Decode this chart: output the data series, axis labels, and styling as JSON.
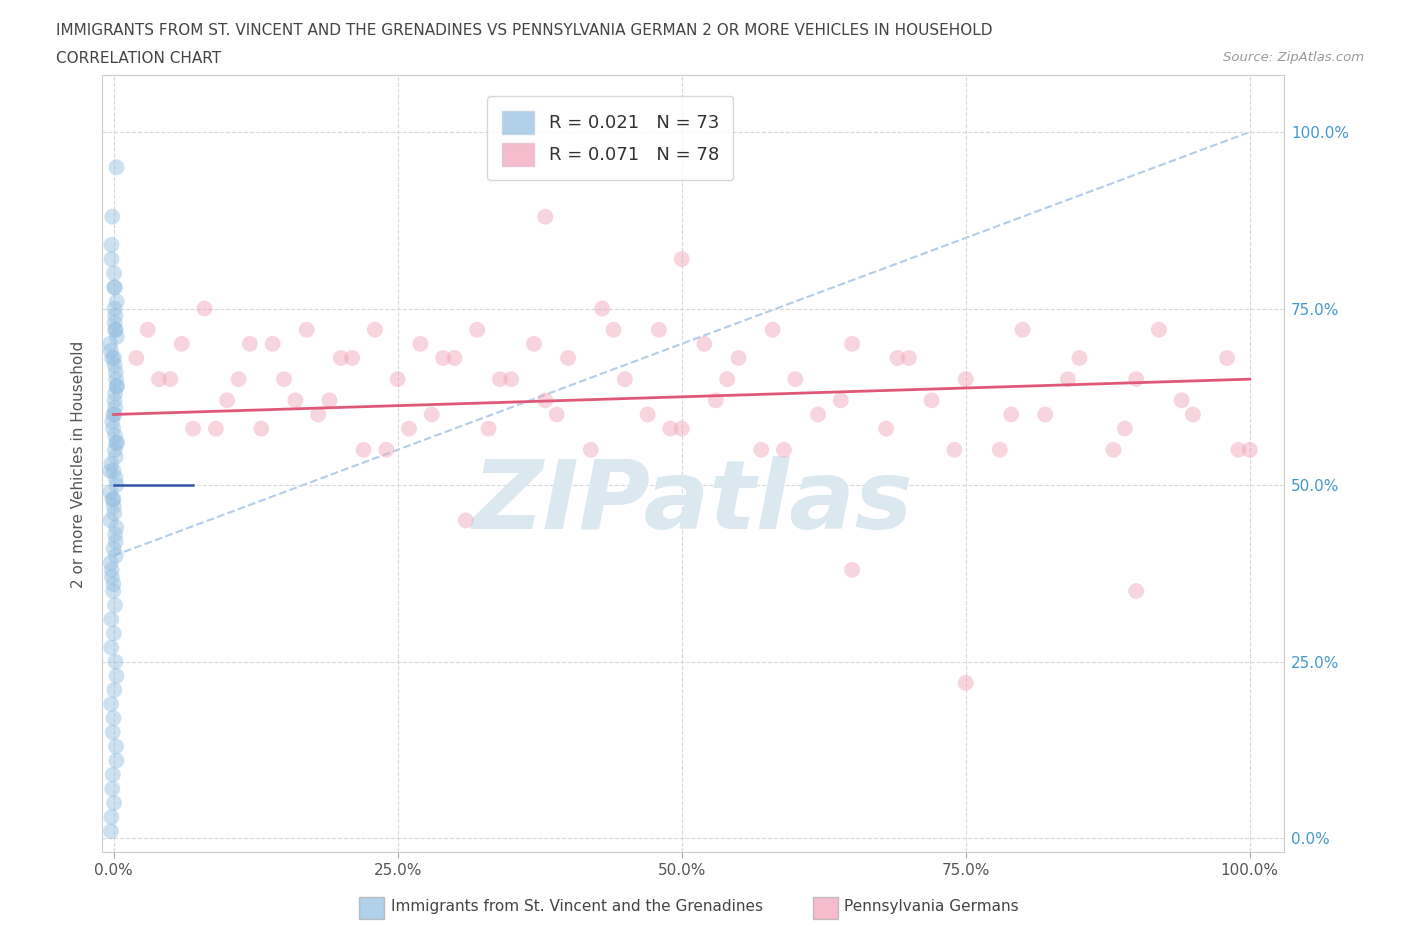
{
  "title_line1": "IMMIGRANTS FROM ST. VINCENT AND THE GRENADINES VS PENNSYLVANIA GERMAN 2 OR MORE VEHICLES IN HOUSEHOLD",
  "title_line2": "CORRELATION CHART",
  "source_text": "Source: ZipAtlas.com",
  "ylabel": "2 or more Vehicles in Household",
  "ytick_labels": [
    "0.0%",
    "25.0%",
    "50.0%",
    "75.0%",
    "100.0%"
  ],
  "ytick_values": [
    0,
    25,
    50,
    75,
    100
  ],
  "xtick_labels": [
    "0.0%",
    "25.0%",
    "50.0%",
    "75.0%",
    "100.0%"
  ],
  "xtick_values": [
    0,
    25,
    50,
    75,
    100
  ],
  "xlim": [
    -1,
    103
  ],
  "ylim": [
    -2,
    108
  ],
  "blue_color": "#90bde0",
  "pink_color": "#f0a0b8",
  "blue_line_color": "#3355aa",
  "pink_line_color": "#e05878",
  "blue_dash_color": "#aac8e8",
  "background_color": "#ffffff",
  "grid_color": "#d8d8d8",
  "legend_blue_R": "R = 0.021",
  "legend_blue_N": "N = 73",
  "legend_pink_R": "R = 0.071",
  "legend_pink_N": "N = 78",
  "watermark_text": "ZIPatlas",
  "watermark_color": "#dce8f0",
  "bottom_label_blue": "Immigrants from St. Vincent and the Grenadines",
  "bottom_label_pink": "Pennsylvania Germans",
  "blue_scatter_x": [
    0,
    0,
    0,
    0,
    0,
    0,
    0,
    0,
    0,
    0,
    0,
    0,
    0,
    0,
    0,
    0,
    0,
    0,
    0,
    0,
    0,
    0,
    0,
    0,
    0,
    0,
    0,
    0,
    0,
    0,
    0,
    0,
    0,
    0,
    0,
    0,
    0,
    0,
    0,
    0,
    0,
    0,
    0,
    0,
    0,
    0,
    0,
    0,
    0,
    0,
    0,
    0,
    0,
    0,
    0,
    0,
    0,
    0,
    0,
    0,
    0,
    0,
    0,
    0,
    0,
    0,
    0,
    0,
    0,
    0,
    0,
    0,
    0
  ],
  "blue_scatter_y": [
    95,
    88,
    84,
    82,
    80,
    78,
    76,
    75,
    74,
    73,
    72,
    71,
    70,
    69,
    68,
    67,
    66,
    65,
    64,
    63,
    62,
    61,
    60,
    59,
    58,
    57,
    56,
    55,
    54,
    53,
    52,
    51,
    50,
    49,
    48,
    47,
    46,
    45,
    44,
    43,
    42,
    41,
    40,
    39,
    38,
    37,
    36,
    35,
    33,
    31,
    29,
    27,
    25,
    23,
    21,
    19,
    17,
    15,
    13,
    11,
    9,
    7,
    5,
    3,
    1,
    78,
    72,
    68,
    64,
    60,
    56,
    52,
    48
  ],
  "pink_scatter_x": [
    2,
    3,
    5,
    7,
    8,
    10,
    12,
    13,
    15,
    17,
    18,
    20,
    22,
    23,
    25,
    27,
    28,
    30,
    32,
    33,
    35,
    37,
    38,
    40,
    42,
    43,
    45,
    47,
    48,
    50,
    52,
    53,
    55,
    57,
    58,
    60,
    62,
    65,
    68,
    70,
    72,
    75,
    78,
    80,
    82,
    85,
    88,
    90,
    92,
    95,
    98,
    100,
    4,
    9,
    14,
    19,
    24,
    29,
    34,
    39,
    44,
    49,
    54,
    59,
    64,
    69,
    74,
    79,
    84,
    89,
    94,
    99,
    6,
    11,
    16,
    21,
    26,
    31
  ],
  "pink_scatter_y": [
    68,
    72,
    65,
    58,
    75,
    62,
    70,
    58,
    65,
    72,
    60,
    68,
    55,
    72,
    65,
    70,
    60,
    68,
    72,
    58,
    65,
    70,
    62,
    68,
    55,
    75,
    65,
    60,
    72,
    58,
    70,
    62,
    68,
    55,
    72,
    65,
    60,
    70,
    58,
    68,
    62,
    65,
    55,
    72,
    60,
    68,
    55,
    65,
    72,
    60,
    68,
    55,
    65,
    58,
    70,
    62,
    55,
    68,
    65,
    60,
    72,
    58,
    65,
    55,
    62,
    68,
    55,
    60,
    65,
    58,
    62,
    55,
    70,
    65,
    62,
    68,
    58,
    45
  ],
  "pink_outlier_x": [
    38,
    50,
    90,
    75,
    65
  ],
  "pink_outlier_y": [
    88,
    82,
    35,
    22,
    38
  ],
  "blue_line_x0": 0,
  "blue_line_x1": 7,
  "blue_line_y0": 50,
  "blue_line_y1": 50,
  "pink_line_x0": 0,
  "pink_line_x1": 100,
  "pink_line_y0": 60,
  "pink_line_y1": 65,
  "blue_dash_x0": 0,
  "blue_dash_x1": 100,
  "blue_dash_y0": 40,
  "blue_dash_y1": 100
}
